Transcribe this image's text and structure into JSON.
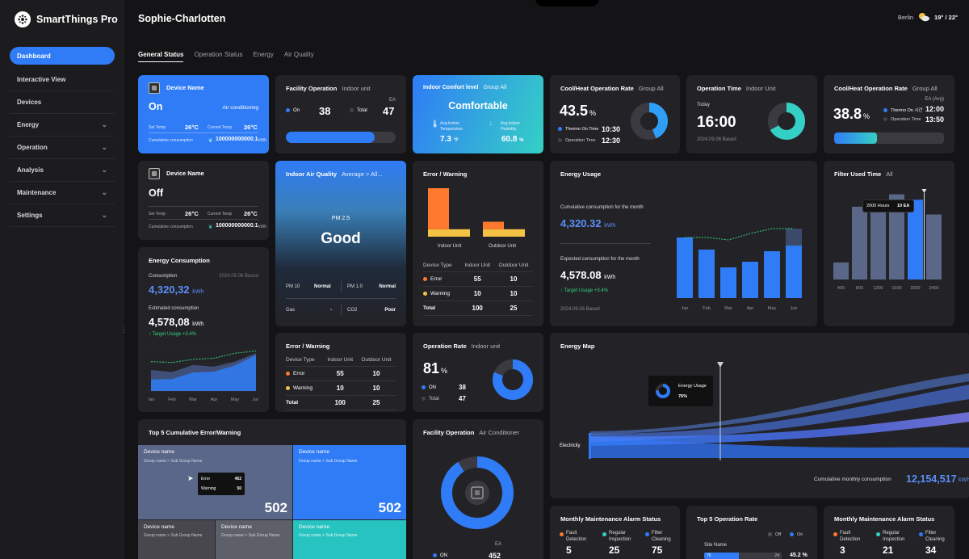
{
  "sidebar": {
    "brand": "SmartThings Pro",
    "items": [
      {
        "label": "Dashboard",
        "chevron": false
      },
      {
        "label": "Interactive View",
        "chevron": false
      },
      {
        "label": "Devices",
        "chevron": false
      },
      {
        "label": "Energy",
        "chevron": true
      },
      {
        "label": "Operation",
        "chevron": true
      },
      {
        "label": "Analysis",
        "chevron": true
      },
      {
        "label": "Maintenance",
        "chevron": true
      },
      {
        "label": "Settings",
        "chevron": true
      }
    ]
  },
  "header": {
    "site": "Sophie-Charlotten",
    "city": "Berlin",
    "temp_hi": "19°",
    "temp_lo": "22°",
    "weather_icon": "partly-cloudy-icon"
  },
  "tabs": [
    "General Status",
    "Operation Status",
    "Energy",
    "Air Quality"
  ],
  "device1": {
    "title": "Device Name",
    "state": "On",
    "mode": "Air conditioning",
    "set_temp_label": "Set Temp",
    "set_temp": "26°C",
    "cur_temp_label": "Current Temp",
    "cur_temp": "26°C",
    "cum_label": "Cumulative consumption",
    "cum_value": "100000000000.1",
    "cum_unit": "kWh"
  },
  "device2": {
    "title": "Device Name",
    "state": "Off",
    "set_temp_label": "Set Temp",
    "set_temp": "26°C",
    "cur_temp_label": "Current Temp",
    "cur_temp": "26°C",
    "cum_label": "Cumulative consumption",
    "cum_value": "100000000000.1",
    "cum_unit": "kWh"
  },
  "facility1": {
    "title": "Facility Operation",
    "sub": "Indoor unit",
    "unit": "EA",
    "on_label": "On",
    "on_value": "38",
    "total_label": "Total",
    "total_value": "47",
    "fill": 0.81
  },
  "comfort": {
    "title": "Indoor Comfort level",
    "sub": "Group All",
    "status": "Comfortable",
    "temp_label_1": "Avg.Indoor",
    "temp_label_2": "Temperature",
    "temp_value": "7.3",
    "temp_unit": "°F",
    "hum_label_1": "Avg.Indoor",
    "hum_label_2": "Humidity",
    "hum_value": "60.8",
    "hum_unit": "%"
  },
  "coolheat1": {
    "title": "Cool/Heat Operation Rate",
    "sub": "Group All",
    "rate": "43.5",
    "unit": "%",
    "thermo_label": "Thermo On Time",
    "thermo_value": "10:30",
    "op_label": "Operation Time",
    "op_value": "12:30",
    "share": 0.44
  },
  "optime": {
    "title": "Operation Time",
    "sub": "Indoor Unit",
    "today_label": "Today",
    "value": "16:00",
    "based": "2024.09.06 Based",
    "share": 0.67
  },
  "coolheat2": {
    "title": "Cool/Heat Operation Rate",
    "sub": "Group All",
    "unit_label": "EA (Avg)",
    "rate": "38.8",
    "unit": "%",
    "thermo_label": "Thermo On 시간",
    "thermo_value": "12:00",
    "op_label": "Operation Time",
    "op_value": "13:50",
    "fill": 0.39
  },
  "air": {
    "title": "Indoor Air Quality",
    "sub": "Average > All...",
    "pm25_label": "PM 2.5",
    "status": "Good",
    "pm10_label": "PM 10",
    "pm10_value": "Normal",
    "pm1_label": "PM 1.0",
    "pm1_value": "Normal",
    "gas_label": "Gas",
    "gas_value": "-",
    "co2_label": "CO2",
    "co2_value": "Poor"
  },
  "error1": {
    "title": "Error / Warning",
    "chart_labels": [
      "Indoor Unit",
      "Outdoor Unit"
    ],
    "headers": [
      "Device Type",
      "Indoor Unit",
      "Outdoor Unit"
    ],
    "rows": [
      {
        "label": "Error",
        "color": "#ff7a2f",
        "indoor": "55",
        "outdoor": "10"
      },
      {
        "label": "Warning",
        "color": "#f5c343",
        "indoor": "10",
        "outdoor": "10"
      },
      {
        "label": "Total",
        "color": "",
        "indoor": "100",
        "outdoor": "25"
      }
    ]
  },
  "energy_usage": {
    "title": "Energy Usage",
    "cum_label": "Cumulative consumption for the month",
    "cum_value": "4,320.32",
    "cum_unit": "kWh",
    "exp_label": "Expected consumption for the month",
    "exp_value": "4,578.08",
    "exp_unit": "kWh",
    "target": "Target Usage +3.4%",
    "based": "2024.09.06 Based"
  },
  "filter": {
    "title": "Filter Used Time",
    "sub": "All",
    "tooltip_hours": "2000 Hours",
    "tooltip_ea": "10 EA"
  },
  "energy_cons": {
    "title": "Energy Consumption",
    "cons_label": "Consumption",
    "based": "2024.09.06 Based",
    "cons_value": "4,320,32",
    "cons_unit": "kWh",
    "est_label": "Estimated consumption",
    "est_value": "4,578,08",
    "est_unit": "kWh",
    "target": "Target Usage +3.4%",
    "months": [
      "Jan",
      "Feb",
      "Mar",
      "Apr",
      "May",
      "Jun"
    ]
  },
  "error2": {
    "title": "Error / Warning",
    "headers": [
      "Device Type",
      "Indoor Unit",
      "Outdoor Unit"
    ],
    "rows": [
      {
        "label": "Error",
        "color": "#ff7a2f",
        "indoor": "55",
        "outdoor": "10"
      },
      {
        "label": "Warning",
        "color": "#f5c343",
        "indoor": "10",
        "outdoor": "10"
      },
      {
        "label": "Total",
        "color": "",
        "indoor": "100",
        "outdoor": "25"
      }
    ]
  },
  "oprate": {
    "title": "Operation Rate",
    "sub": "Indoor unit",
    "rate": "81",
    "unit": "%",
    "on_label": "ON",
    "on_value": "38",
    "total_label": "Total",
    "total_value": "47",
    "share": 0.81
  },
  "energy_map": {
    "title": "Energy Map",
    "tooltip_label": "Energy Usage",
    "tooltip_value": "76%",
    "left_label": "Electricity",
    "cum_label": "Cumulative monthly consumption",
    "cum_value": "12,154,517",
    "cum_unit": "kWh"
  },
  "top5": {
    "title": "Top 5 Cumulative Error/Warning",
    "tiles": [
      {
        "name": "Device name",
        "group": "Group name  >  Sub Group Name",
        "value": "502"
      },
      {
        "name": "Device name",
        "group": "Group name  >  Sub Group Name",
        "value": "502"
      },
      {
        "name": "Device name",
        "group": "Group name  >  Sub Group Name",
        "value": ""
      },
      {
        "name": "Device name",
        "group": "Group name  >  Sub Group Name",
        "value": ""
      },
      {
        "name": "Device name",
        "group": "Group name  >  Sub Group Name",
        "value": ""
      }
    ],
    "tooltip_error_label": "Error",
    "tooltip_error": "452",
    "tooltip_warn_label": "Warning",
    "tooltip_warn": "50"
  },
  "facility2": {
    "title": "Facility Operation",
    "sub": "Air Conditioner",
    "unit": "EA",
    "on_label": "ON",
    "on_value": "452",
    "share": 0.91
  },
  "maint1": {
    "title": "Monthly Maintenance Alarm Status",
    "items": [
      {
        "label1": "Fault",
        "label2": "Detection",
        "value": "5",
        "color": "#ff7a2f"
      },
      {
        "label1": "Regular",
        "label2": "Inspection",
        "value": "25",
        "color": "#35d0c5"
      },
      {
        "label1": "Filter",
        "label2": "Cleaning",
        "value": "75",
        "color": "#2f7cf6"
      }
    ]
  },
  "top5op": {
    "title": "Top 5 Operation Rate",
    "off_label": "Off",
    "on_label": "On",
    "row_name": "Site Name",
    "bar_label": "75",
    "bar_end": "24",
    "rate": "45.2 %",
    "fill": 0.45
  },
  "maint2": {
    "title": "Monthly Maintenance Alarm Status",
    "items": [
      {
        "label1": "Fault",
        "label2": "Detection",
        "value": "3",
        "color": "#ff7a2f"
      },
      {
        "label1": "Regular",
        "label2": "Inspection",
        "value": "21",
        "color": "#35d0c5"
      },
      {
        "label1": "Filter",
        "label2": "Cleaning",
        "value": "34",
        "color": "#2f7cf6"
      }
    ]
  },
  "chart_data": [
    {
      "type": "bar",
      "title": "Error / Warning",
      "categories": [
        "Indoor Unit",
        "Outdoor Unit"
      ],
      "series": [
        {
          "name": "Error",
          "values": [
            55,
            10
          ]
        },
        {
          "name": "Warning",
          "values": [
            10,
            10
          ]
        }
      ]
    },
    {
      "type": "bar",
      "title": "Energy Usage",
      "categories": [
        "Jan",
        "Feb",
        "Mar",
        "Apr",
        "May",
        "Jun"
      ],
      "values": [
        75,
        60,
        38,
        45,
        58,
        65
      ],
      "expected_line": [
        75,
        75,
        72,
        80,
        86,
        86
      ],
      "ylim": [
        0,
        100
      ]
    },
    {
      "type": "bar",
      "title": "Filter Used Time",
      "categories": [
        "400",
        "800",
        "1200",
        "1600",
        "2000",
        "2400"
      ],
      "values": [
        22,
        94,
        94,
        110,
        103,
        84
      ],
      "highlight": "2000"
    },
    {
      "type": "area",
      "title": "Energy Consumption",
      "categories": [
        "Jan",
        "Feb",
        "Mar",
        "Apr",
        "May",
        "Jun"
      ],
      "values": [
        50,
        45,
        62,
        58,
        70,
        90
      ],
      "target_line": [
        70,
        68,
        75,
        78,
        90,
        95
      ]
    }
  ]
}
